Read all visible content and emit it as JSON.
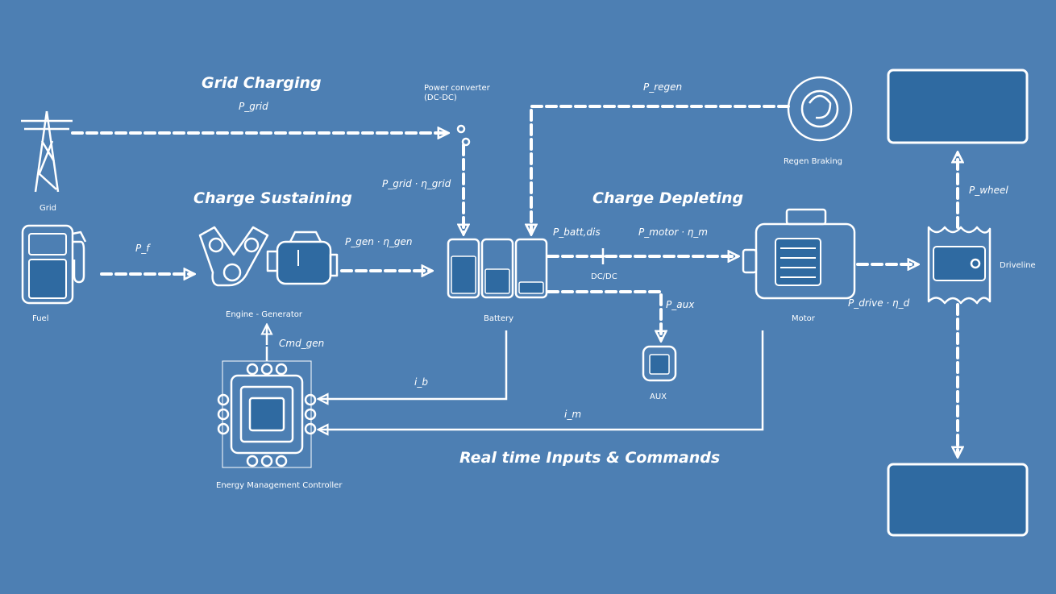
{
  "headings": {
    "grid_charging": "Grid Charging",
    "charge_sustaining": "Charge Sustaining",
    "charge_depleting": "Charge Depleting",
    "realtime": "Real time Inputs & Commands"
  },
  "components": {
    "grid": "Grid",
    "fuel": "Fuel",
    "engine_generator": "Engine - Generator",
    "battery": "Battery",
    "motor": "Motor",
    "driveline": "Driveline",
    "regen_braking": "Regen Braking",
    "aux": "AUX",
    "ems": "Energy Management Controller"
  },
  "symbols": {
    "p_grid": "P_grid",
    "p_f": "P_f",
    "p_gen_ngen": "P_gen · η_gen",
    "p_grid_ngrid": "P_grid · η_grid",
    "p_regen": "P_regen",
    "p_batt_dis": "P_batt,dis",
    "p_motor_in": "P_motor · η_m",
    "p_aux": "P_aux",
    "p_drive_nd": "P_drive · η_d",
    "p_wheel": "P_wheel",
    "i_b": "i_b",
    "i_m": "i_m",
    "cmd": "Cmd_gen",
    "power_converter": "Power converter\n(DC-DC)",
    "dc_dc": "DC/DC"
  },
  "colors": {
    "background": "#4d7fb3",
    "box_fill": "#2f6aa1",
    "line": "#ffffff"
  }
}
